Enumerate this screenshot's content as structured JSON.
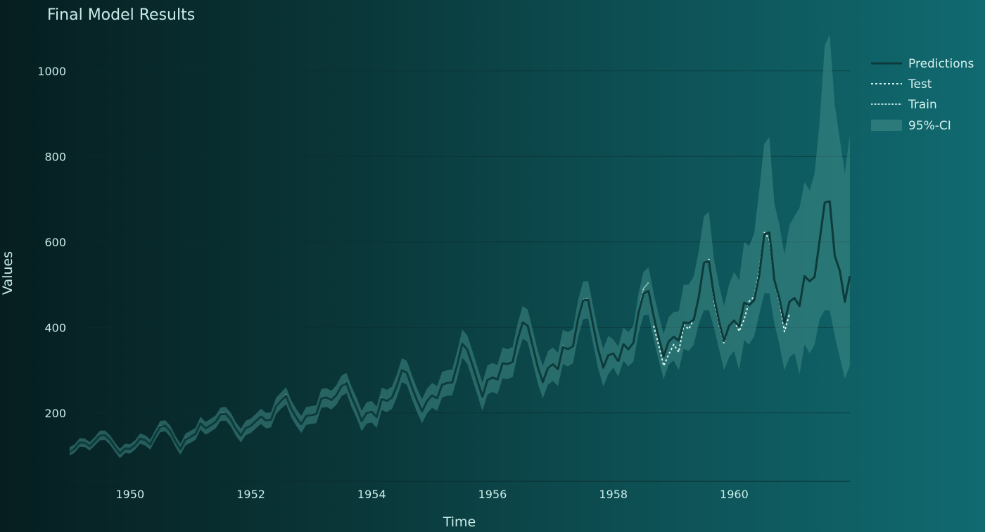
{
  "chart_data": {
    "type": "line",
    "title": "Final Model Results",
    "xlabel": "Time",
    "ylabel": "Values",
    "xlim": [
      1949.0,
      1961.917
    ],
    "ylim": [
      40,
      1100
    ],
    "xticks": [
      1950,
      1952,
      1954,
      1956,
      1958,
      1960
    ],
    "yticks": [
      200,
      400,
      600,
      800,
      1000
    ],
    "grid": true,
    "legend_position": "top-right",
    "colors": {
      "predictions": "#0d3b3b",
      "test": "#d9f3ef",
      "train": "#cbeeea",
      "ci": "#3f8a86"
    },
    "legend": [
      "Predictions",
      "Test",
      "Train",
      "95%-CI"
    ],
    "series": [
      {
        "name": "Train",
        "x_start": 1949.0,
        "step": 0.08333,
        "values": [
          112,
          118,
          132,
          129,
          121,
          135,
          148,
          148,
          136,
          119,
          104,
          118,
          115,
          126,
          141,
          135,
          125,
          149,
          170,
          170,
          158,
          133,
          114,
          140,
          145,
          150,
          178,
          163,
          172,
          178,
          199,
          199,
          184,
          162,
          146,
          166,
          171,
          180,
          193,
          181,
          183,
          218,
          230,
          242,
          209,
          191,
          172,
          194,
          196,
          196,
          236,
          235,
          229,
          243,
          264,
          272,
          237,
          211,
          180,
          201,
          204,
          188,
          235,
          227,
          234,
          264,
          302,
          293,
          259,
          229,
          203,
          229,
          242,
          233,
          267,
          269,
          270,
          315,
          364,
          347,
          312,
          274,
          237,
          278,
          284,
          277,
          317,
          313,
          318,
          374,
          413,
          405,
          355,
          306,
          271,
          306,
          315,
          301,
          356,
          348,
          355,
          422,
          465,
          467,
          404,
          347,
          305,
          336,
          340,
          318,
          362,
          348,
          363,
          435,
          491,
          505
        ]
      },
      {
        "name": "Test",
        "x_start": 1958.667,
        "step": 0.08333,
        "values": [
          404,
          359,
          310,
          337,
          360,
          342,
          406,
          396,
          420,
          472,
          548,
          559,
          463,
          407,
          362,
          405,
          417,
          391,
          419,
          461,
          472,
          535,
          622,
          606,
          508,
          461,
          390,
          432
        ]
      },
      {
        "name": "Predictions",
        "x_start": 1949.0,
        "step": 0.08333,
        "values": [
          110,
          117,
          131,
          130,
          122,
          134,
          147,
          148,
          137,
          120,
          105,
          117,
          116,
          125,
          140,
          136,
          126,
          148,
          168,
          170,
          157,
          134,
          115,
          138,
          144,
          151,
          176,
          164,
          171,
          179,
          197,
          198,
          185,
          163,
          147,
          165,
          170,
          181,
          192,
          182,
          184,
          216,
          229,
          240,
          210,
          190,
          173,
          193,
          195,
          197,
          234,
          236,
          230,
          242,
          263,
          270,
          238,
          212,
          181,
          200,
          203,
          190,
          233,
          228,
          235,
          263,
          300,
          294,
          260,
          230,
          204,
          228,
          241,
          234,
          266,
          270,
          271,
          313,
          362,
          348,
          313,
          275,
          238,
          277,
          283,
          278,
          316,
          314,
          319,
          372,
          412,
          404,
          356,
          307,
          272,
          305,
          314,
          302,
          354,
          349,
          356,
          420,
          463,
          465,
          405,
          348,
          306,
          335,
          339,
          320,
          361,
          349,
          364,
          433,
          480,
          485,
          428,
          377,
          332,
          367,
          378,
          369,
          412,
          410,
          418,
          472,
          551,
          555,
          473,
          415,
          368,
          404,
          416,
          402,
          458,
          452,
          464,
          522,
          618,
          622,
          511,
          468,
          410,
          460,
          469,
          450,
          520,
          508,
          518,
          604,
          692,
          695,
          567,
          533,
          460,
          520
        ]
      },
      {
        "name": "95%-CI",
        "x_start": 1949.0,
        "step": 0.08333,
        "lower": [
          100,
          107,
          121,
          120,
          112,
          124,
          136,
          137,
          126,
          109,
          94,
          106,
          105,
          114,
          128,
          124,
          114,
          136,
          155,
          157,
          144,
          121,
          102,
          124,
          130,
          137,
          161,
          149,
          156,
          164,
          181,
          182,
          169,
          147,
          131,
          148,
          153,
          164,
          174,
          164,
          166,
          197,
          210,
          220,
          190,
          170,
          153,
          172,
          174,
          176,
          212,
          214,
          208,
          219,
          239,
          246,
          214,
          188,
          157,
          175,
          178,
          165,
          207,
          202,
          209,
          236,
          272,
          266,
          232,
          202,
          176,
          199,
          212,
          205,
          236,
          240,
          241,
          281,
          329,
          315,
          280,
          242,
          205,
          243,
          249,
          244,
          281,
          279,
          284,
          335,
          374,
          366,
          318,
          269,
          234,
          266,
          275,
          263,
          314,
          309,
          316,
          377,
          419,
          421,
          361,
          304,
          262,
          290,
          306,
          285,
          322,
          309,
          320,
          385,
          428,
          430,
          375,
          324,
          279,
          313,
          323,
          300,
          350,
          345,
          360,
          410,
          440,
          440,
          400,
          350,
          300,
          330,
          345,
          300,
          370,
          360,
          380,
          430,
          480,
          480,
          410,
          360,
          300,
          330,
          340,
          290,
          360,
          340,
          360,
          420,
          440,
          440,
          380,
          330,
          280,
          310
        ],
        "upper": [
          120,
          127,
          141,
          140,
          132,
          144,
          158,
          159,
          148,
          131,
          116,
          128,
          127,
          136,
          152,
          148,
          138,
          160,
          181,
          183,
          170,
          147,
          128,
          152,
          158,
          165,
          191,
          179,
          186,
          194,
          213,
          214,
          201,
          179,
          163,
          182,
          187,
          198,
          210,
          200,
          202,
          235,
          248,
          260,
          230,
          210,
          193,
          214,
          216,
          218,
          256,
          258,
          252,
          265,
          287,
          294,
          262,
          236,
          205,
          225,
          228,
          215,
          259,
          254,
          261,
          290,
          328,
          322,
          288,
          258,
          232,
          257,
          270,
          263,
          296,
          300,
          301,
          345,
          395,
          381,
          346,
          308,
          271,
          311,
          317,
          312,
          353,
          349,
          354,
          409,
          450,
          442,
          394,
          345,
          310,
          344,
          353,
          341,
          394,
          389,
          396,
          463,
          507,
          509,
          449,
          392,
          350,
          380,
          372,
          355,
          400,
          389,
          404,
          478,
          530,
          540,
          481,
          430,
          385,
          424,
          436,
          438,
          500,
          500,
          520,
          580,
          660,
          670,
          560,
          500,
          450,
          500,
          530,
          510,
          600,
          590,
          620,
          720,
          830,
          845,
          690,
          640,
          570,
          640,
          660,
          680,
          740,
          720,
          760,
          880,
          1060,
          1085,
          920,
          840,
          760,
          850
        ]
      }
    ]
  }
}
